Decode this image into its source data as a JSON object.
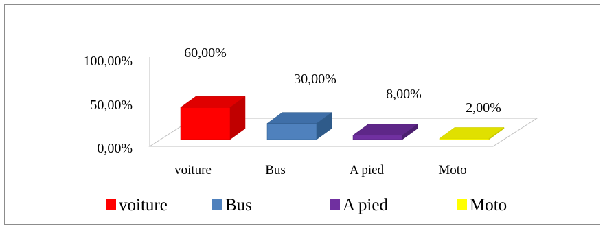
{
  "chart_data": {
    "type": "bar",
    "style": "3d-column",
    "categories": [
      "voiture",
      "Bus",
      "A pied",
      "Moto"
    ],
    "values": [
      60.0,
      30.0,
      8.0,
      2.0
    ],
    "data_labels": [
      "60,00%",
      "30,00%",
      "8,00%",
      "2,00%"
    ],
    "y_ticks": [
      "0,00%",
      "50,00%",
      "100,00%"
    ],
    "ylim": [
      0,
      100
    ],
    "grid": false,
    "legend_position": "bottom",
    "legend": [
      "voiture",
      "Bus",
      "A pied",
      "Moto"
    ],
    "colors": [
      "#ff0000",
      "#4f81bd",
      "#7030a0",
      "#ffff00"
    ],
    "side_colors": [
      "#c00000",
      "#2f5b8a",
      "#4b1f6f",
      "#c8c800"
    ],
    "top_colors": [
      "#e00000",
      "#3f6fa8",
      "#5e2788",
      "#e0e000"
    ]
  }
}
